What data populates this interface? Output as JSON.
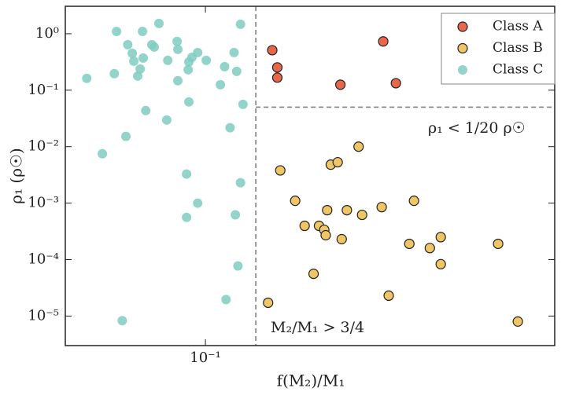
{
  "chart_data": {
    "type": "scatter",
    "xlabel": "f(M₂)/M₁",
    "ylabel": "ρ₁ (ρ☉)",
    "xscale": "log",
    "yscale": "log",
    "xlim": [
      0.041,
      0.923
    ],
    "ylim": [
      3e-06,
      3.06
    ],
    "xticks": [
      {
        "value": 0.1,
        "label": "10⁻¹"
      }
    ],
    "yticks": [
      {
        "value": 1e-05,
        "label": "10⁻⁵"
      },
      {
        "value": 0.0001,
        "label": "10⁻⁴"
      },
      {
        "value": 0.001,
        "label": "10⁻³"
      },
      {
        "value": 0.01,
        "label": "10⁻²"
      },
      {
        "value": 0.1,
        "label": "10⁻¹"
      },
      {
        "value": 1,
        "label": "10⁰"
      }
    ],
    "vline": 0.1378,
    "hline": 0.05,
    "annotations": [
      "ρ₁ < 1/20 ρ☉",
      "M₂/M₁ > 3/4"
    ],
    "legend_loc": "upper right",
    "series": [
      {
        "name": "Class A",
        "color": "#e8674a",
        "edgecolor": "#222222",
        "alpha": 1,
        "x": [
          0.153,
          0.158,
          0.158,
          0.236,
          0.31,
          0.336
        ],
        "values": [
          0.51,
          0.253,
          0.167,
          0.125,
          0.73,
          0.133
        ]
      },
      {
        "name": "Class B",
        "color": "#f0c566",
        "edgecolor": "#222222",
        "alpha": 1,
        "x": [
          0.149,
          0.161,
          0.177,
          0.188,
          0.199,
          0.206,
          0.213,
          0.215,
          0.217,
          0.222,
          0.232,
          0.238,
          0.246,
          0.265,
          0.271,
          0.307,
          0.321,
          0.366,
          0.377,
          0.417,
          0.447,
          0.447,
          0.644,
          0.73
        ],
        "values": [
          1.72e-05,
          0.0038,
          0.0011,
          0.000396,
          5.6e-05,
          0.000396,
          0.000337,
          0.00027,
          0.00075,
          0.0048,
          0.0053,
          0.00023,
          0.00075,
          0.01,
          0.00062,
          0.00085,
          2.3e-05,
          0.00019,
          0.0011,
          0.00016,
          0.00025,
          8.3e-05,
          0.00019,
          8e-06
        ]
      },
      {
        "name": "Class C",
        "color": "#7fcdc0",
        "alpha": 0.85,
        "x": [
          0.047,
          0.0519,
          0.056,
          0.0568,
          0.0589,
          0.0603,
          0.061,
          0.0628,
          0.0634,
          0.065,
          0.066,
          0.067,
          0.0673,
          0.0684,
          0.0711,
          0.0722,
          0.0744,
          0.0782,
          0.0787,
          0.0835,
          0.0839,
          0.0839,
          0.0887,
          0.0887,
          0.0896,
          0.09,
          0.09,
          0.0918,
          0.0952,
          0.0952,
          0.1005,
          0.11,
          0.113,
          0.114,
          0.117,
          0.12,
          0.121,
          0.122,
          0.123,
          0.125,
          0.125,
          0.127
        ],
        "values": [
          0.162,
          0.0075,
          0.196,
          1.1,
          8.3e-06,
          0.0152,
          0.64,
          0.45,
          0.327,
          0.178,
          0.237,
          1.1,
          0.371,
          0.0435,
          0.64,
          0.58,
          1.52,
          0.0297,
          0.337,
          0.73,
          0.527,
          0.147,
          0.00327,
          0.00056,
          0.23,
          0.062,
          0.316,
          0.383,
          0.464,
          0.001,
          0.337,
          0.125,
          0.261,
          1.96e-05,
          0.0216,
          0.464,
          0.00062,
          0.215,
          7.7e-05,
          0.0023,
          1.47,
          0.056
        ]
      }
    ]
  }
}
